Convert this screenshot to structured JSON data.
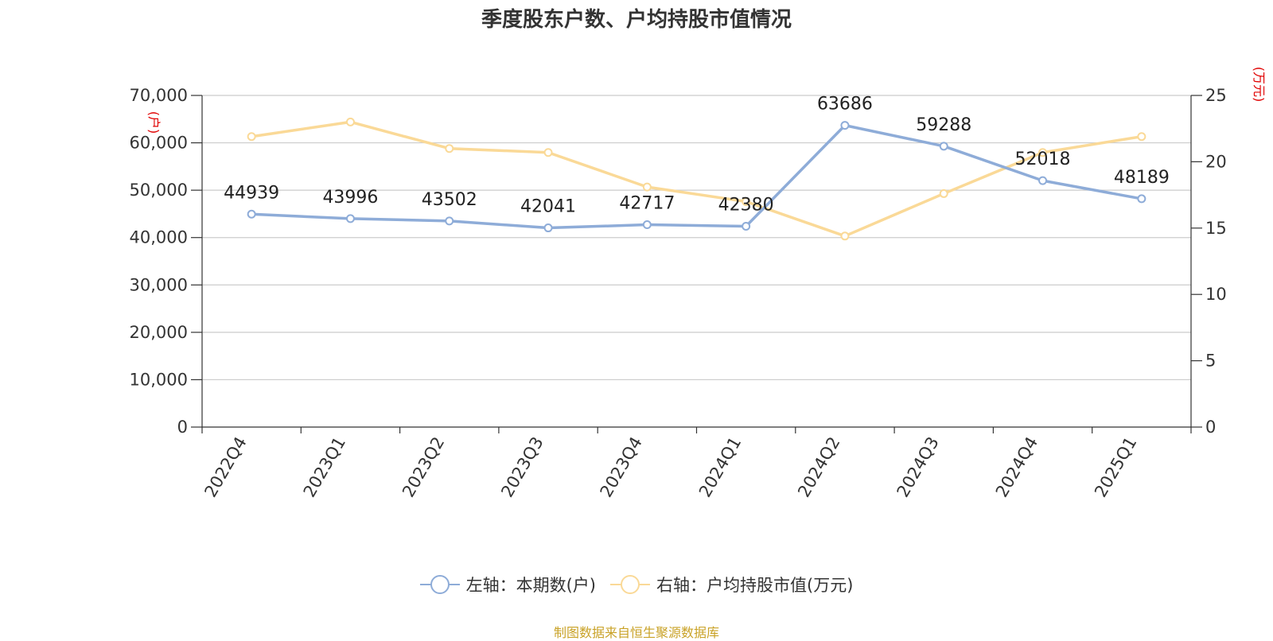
{
  "title": "季度股东户数、户均持股市值情况",
  "source": "制图数据来自恒生聚源数据库",
  "chart_data": {
    "type": "line",
    "title": "季度股东户数、户均持股市值情况",
    "categories": [
      "2022Q4",
      "2023Q1",
      "2023Q2",
      "2023Q3",
      "2023Q4",
      "2024Q1",
      "2024Q2",
      "2024Q3",
      "2024Q4",
      "2025Q1"
    ],
    "left_axis": {
      "unit": "(户)",
      "ylim": [
        0,
        70000
      ],
      "ticks": [
        0,
        10000,
        20000,
        30000,
        40000,
        50000,
        60000,
        70000
      ],
      "tick_labels": [
        "0",
        "10,000",
        "20,000",
        "30,000",
        "40,000",
        "50,000",
        "60,000",
        "70,000"
      ]
    },
    "right_axis": {
      "unit": "(万元)",
      "ylim": [
        0,
        25
      ],
      "ticks": [
        0,
        5,
        10,
        15,
        20,
        25
      ],
      "tick_labels": [
        "0",
        "5",
        "10",
        "15",
        "20",
        "25"
      ]
    },
    "series": [
      {
        "name": "左轴：本期数(户)",
        "axis": "left",
        "color": "#8eacd8",
        "values": [
          44939,
          43996,
          43502,
          42041,
          42717,
          42380,
          63686,
          59288,
          52018,
          48189
        ],
        "labels": [
          "44939",
          "43996",
          "43502",
          "42041",
          "42717",
          "42380",
          "63686",
          "59288",
          "52018",
          "48189"
        ]
      },
      {
        "name": "右轴：户均持股市值(万元)",
        "axis": "right",
        "color": "#fad997",
        "values": [
          21.9,
          23.0,
          21.0,
          20.7,
          18.1,
          17.0,
          14.4,
          17.6,
          20.7,
          21.9
        ]
      }
    ],
    "grid": true,
    "legend_position": "bottom"
  }
}
